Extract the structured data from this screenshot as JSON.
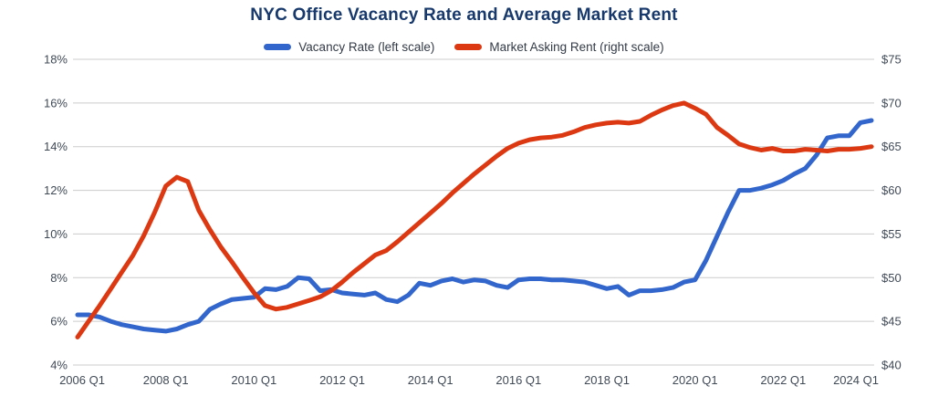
{
  "title": "NYC Office Vacancy Rate and Average Market Rent",
  "legend": [
    {
      "label": "Vacancy Rate (left scale)",
      "color": "#3366cc"
    },
    {
      "label": "Market Asking Rent (right scale)",
      "color": "#dc3912"
    }
  ],
  "colors": {
    "vacancy_line": "#3366cc",
    "rent_line": "#dc3912",
    "grid": "#cccccc",
    "axis_text": "#404a57",
    "title_text": "#17396b"
  },
  "chart_data": {
    "type": "line",
    "title": "NYC Office Vacancy Rate and Average Market Rent",
    "grid": true,
    "legend_position": "top",
    "x": [
      "2006 Q1",
      "2006 Q2",
      "2006 Q3",
      "2006 Q4",
      "2007 Q1",
      "2007 Q2",
      "2007 Q3",
      "2007 Q4",
      "2008 Q1",
      "2008 Q2",
      "2008 Q3",
      "2008 Q4",
      "2009 Q1",
      "2009 Q2",
      "2009 Q3",
      "2009 Q4",
      "2010 Q1",
      "2010 Q2",
      "2010 Q3",
      "2010 Q4",
      "2011 Q1",
      "2011 Q2",
      "2011 Q3",
      "2011 Q4",
      "2012 Q1",
      "2012 Q2",
      "2012 Q3",
      "2012 Q4",
      "2013 Q1",
      "2013 Q2",
      "2013 Q3",
      "2013 Q4",
      "2014 Q1",
      "2014 Q2",
      "2014 Q3",
      "2014 Q4",
      "2015 Q1",
      "2015 Q2",
      "2015 Q3",
      "2015 Q4",
      "2016 Q1",
      "2016 Q2",
      "2016 Q3",
      "2016 Q4",
      "2017 Q1",
      "2017 Q2",
      "2017 Q3",
      "2017 Q4",
      "2018 Q1",
      "2018 Q2",
      "2018 Q3",
      "2018 Q4",
      "2019 Q1",
      "2019 Q2",
      "2019 Q3",
      "2019 Q4",
      "2020 Q1",
      "2020 Q2",
      "2020 Q3",
      "2020 Q4",
      "2021 Q1",
      "2021 Q2",
      "2021 Q3",
      "2021 Q4",
      "2022 Q1",
      "2022 Q2",
      "2022 Q3",
      "2022 Q4",
      "2023 Q1",
      "2023 Q2",
      "2023 Q3",
      "2023 Q4",
      "2024 Q1"
    ],
    "x_tick_labels": [
      "2006 Q1",
      "2008 Q1",
      "2010 Q1",
      "2012 Q1",
      "2014 Q1",
      "2016 Q1",
      "2018 Q1",
      "2020 Q1",
      "2022 Q1",
      "2024 Q1"
    ],
    "x_tick_step": 8,
    "series": [
      {
        "name": "Vacancy Rate (left scale)",
        "axis": "left",
        "unit": "%",
        "color": "#3366cc",
        "values": [
          6.3,
          6.3,
          6.2,
          6.0,
          5.85,
          5.75,
          5.65,
          5.6,
          5.55,
          5.65,
          5.85,
          6.0,
          6.55,
          6.8,
          7.0,
          7.05,
          7.1,
          7.5,
          7.45,
          7.6,
          8.0,
          7.95,
          7.4,
          7.45,
          7.3,
          7.25,
          7.2,
          7.3,
          7.0,
          6.9,
          7.2,
          7.75,
          7.65,
          7.85,
          7.95,
          7.8,
          7.9,
          7.85,
          7.65,
          7.55,
          7.9,
          7.95,
          7.95,
          7.9,
          7.9,
          7.85,
          7.8,
          7.65,
          7.5,
          7.6,
          7.2,
          7.4,
          7.4,
          7.45,
          7.55,
          7.8,
          7.9,
          8.8,
          9.9,
          11.0,
          12.0,
          12.0,
          12.1,
          12.25,
          12.45,
          12.75,
          13.0,
          13.6,
          14.4,
          14.5,
          14.5,
          15.1,
          15.2
        ]
      },
      {
        "name": "Market Asking Rent (right scale)",
        "axis": "right",
        "unit": "$",
        "color": "#dc3912",
        "values": [
          43.2,
          45.0,
          46.8,
          48.7,
          50.6,
          52.5,
          54.8,
          57.5,
          60.5,
          61.5,
          61.0,
          57.7,
          55.5,
          53.5,
          51.8,
          50.0,
          48.3,
          46.8,
          46.4,
          46.6,
          47.0,
          47.4,
          47.8,
          48.5,
          49.5,
          50.6,
          51.6,
          52.6,
          53.1,
          54.1,
          55.2,
          56.3,
          57.4,
          58.5,
          59.7,
          60.8,
          61.9,
          62.9,
          63.9,
          64.8,
          65.4,
          65.8,
          66.0,
          66.1,
          66.3,
          66.7,
          67.2,
          67.5,
          67.7,
          67.8,
          67.7,
          67.9,
          68.6,
          69.2,
          69.7,
          70.0,
          69.4,
          68.7,
          67.2,
          66.3,
          65.3,
          64.9,
          64.6,
          64.8,
          64.5,
          64.5,
          64.7,
          64.6,
          64.5,
          64.7,
          64.7,
          64.8,
          65.0
        ]
      }
    ],
    "left_axis": {
      "ticks": [
        "18%",
        "16%",
        "14%",
        "12%",
        "10%",
        "8%",
        "6%",
        "4%"
      ],
      "min": 4,
      "max": 18
    },
    "right_axis": {
      "ticks": [
        "$75",
        "$70",
        "$65",
        "$60",
        "$55",
        "$50",
        "$45",
        "$40"
      ],
      "min": 40,
      "max": 75
    }
  }
}
